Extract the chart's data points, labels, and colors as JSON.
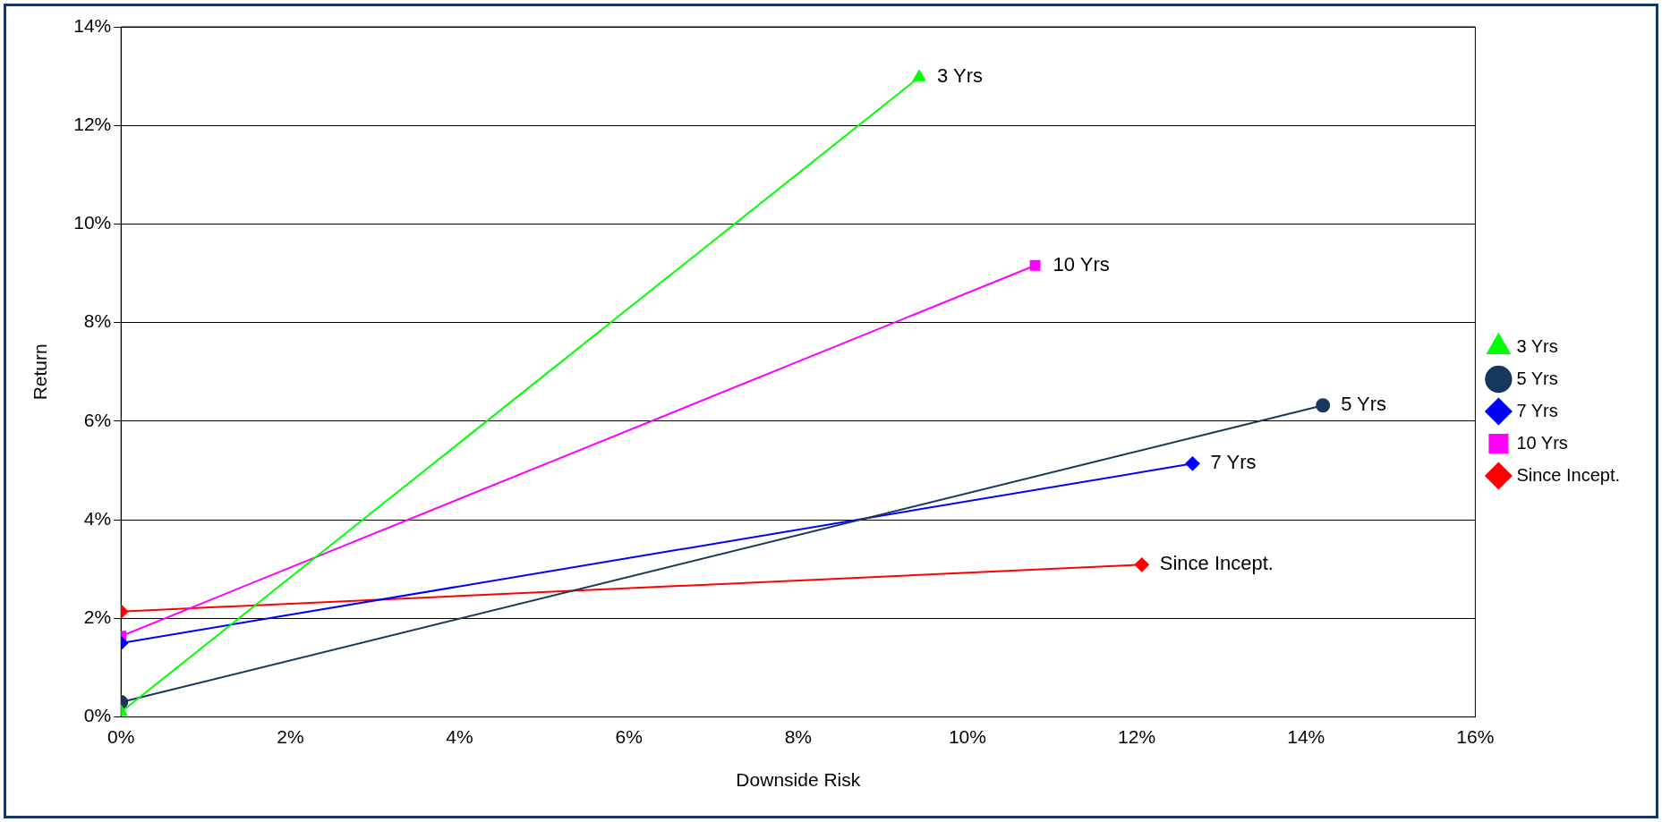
{
  "chart_data": {
    "type": "line",
    "xlabel": "Downside Risk",
    "ylabel": "Return",
    "xlim": [
      0,
      16
    ],
    "xticks": [
      {
        "value": 0,
        "label": "0%"
      },
      {
        "value": 2,
        "label": "2%"
      },
      {
        "value": 4,
        "label": "4%"
      },
      {
        "value": 6,
        "label": "6%"
      },
      {
        "value": 8,
        "label": "8%"
      },
      {
        "value": 10,
        "label": "10%"
      },
      {
        "value": 12,
        "label": "12%"
      },
      {
        "value": 14,
        "label": "14%"
      },
      {
        "value": 16,
        "label": "16%"
      }
    ],
    "ylim": [
      0,
      14
    ],
    "yticks": [
      {
        "value": 0,
        "label": "0%"
      },
      {
        "value": 2,
        "label": "2%"
      },
      {
        "value": 4,
        "label": "4%"
      },
      {
        "value": 6,
        "label": "6%"
      },
      {
        "value": 8,
        "label": "8%"
      },
      {
        "value": 10,
        "label": "10%"
      },
      {
        "value": 12,
        "label": "12%"
      },
      {
        "value": 14,
        "label": "14%"
      }
    ],
    "grid": "y",
    "legend": "right",
    "line_style": "solid",
    "series": [
      {
        "name": "3 Yrs",
        "color": "#00ff00",
        "marker": "triangle",
        "x": [
          0,
          9.43
        ],
        "values": [
          0.1,
          12.98
        ]
      },
      {
        "name": "5 Yrs",
        "color": "#17375e",
        "marker": "circle",
        "x": [
          0,
          14.2
        ],
        "values": [
          0.3,
          6.32
        ]
      },
      {
        "name": "7 Yrs",
        "color": "#0000ff",
        "marker": "diamond",
        "x": [
          0,
          12.66
        ],
        "values": [
          1.5,
          5.14
        ]
      },
      {
        "name": "10 Yrs",
        "color": "#ff00ff",
        "marker": "square",
        "x": [
          0,
          10.8
        ],
        "values": [
          1.64,
          9.16
        ]
      },
      {
        "name": "Since Incept.",
        "color": "#ff0000",
        "marker": "diamond",
        "x": [
          0,
          12.06
        ],
        "values": [
          2.14,
          3.09
        ]
      }
    ],
    "annotations": [
      {
        "text": "3 Yrs",
        "x": 9.43,
        "y": 12.98
      },
      {
        "text": "10 Yrs",
        "x": 10.8,
        "y": 9.16
      },
      {
        "text": "5 Yrs",
        "x": 14.2,
        "y": 6.32
      },
      {
        "text": "7 Yrs",
        "x": 12.66,
        "y": 5.14
      },
      {
        "text": "Since Incept.",
        "x": 12.06,
        "y": 3.09
      }
    ]
  }
}
